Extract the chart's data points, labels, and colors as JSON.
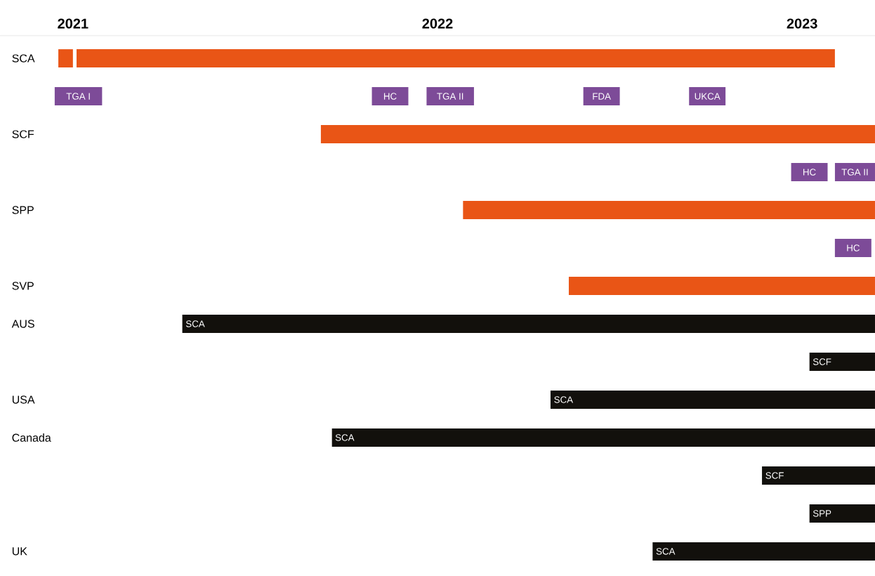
{
  "chart_data": {
    "type": "bar",
    "orientation": "horizontal",
    "categories": [
      "SCA",
      null,
      "SCF",
      null,
      "SPP",
      null,
      "SVP",
      "AUS",
      null,
      "USA",
      "Canada",
      null,
      null,
      "UK"
    ],
    "xlim": [
      2020.8,
      2023.2
    ],
    "xticks": [
      2021,
      2022,
      2023
    ],
    "series": [
      {
        "color": "#e95516",
        "base": [
          2020.96,
          null,
          2021.68,
          null,
          2022.07,
          null,
          2022.36,
          null,
          null,
          null,
          null,
          null,
          null,
          null
        ],
        "values": [
          0.04,
          null,
          1.52,
          null,
          1.13,
          null,
          0.84,
          null,
          null,
          null,
          null,
          null,
          null,
          null
        ]
      },
      {
        "color": "#e95516",
        "base": [
          2021.01,
          null,
          null,
          null,
          null,
          null,
          null,
          null,
          null,
          null,
          null,
          null,
          null,
          null
        ],
        "values": [
          2.08,
          null,
          null,
          null,
          null,
          null,
          null,
          null,
          null,
          null,
          null,
          null,
          null,
          null
        ]
      },
      {
        "color": "#7d4b98",
        "base": [
          null,
          2020.95,
          null,
          2022.97,
          null,
          2023.09,
          null,
          null,
          null,
          null,
          null,
          null,
          null,
          null
        ],
        "values": [
          null,
          0.13,
          null,
          0.1,
          null,
          0.1,
          null,
          null,
          null,
          null,
          null,
          null,
          null,
          null
        ],
        "value_labels": [
          null,
          "TGA I",
          null,
          "HC",
          null,
          "HC",
          null,
          null,
          null,
          null,
          null,
          null,
          null,
          null
        ]
      },
      {
        "color": "#7d4b98",
        "base": [
          null,
          2021.82,
          null,
          2023.09,
          null,
          null,
          null,
          null,
          null,
          null,
          null,
          null,
          null,
          null
        ],
        "values": [
          null,
          0.1,
          null,
          0.11,
          null,
          null,
          null,
          null,
          null,
          null,
          null,
          null,
          null,
          null
        ],
        "value_labels": [
          null,
          "HC",
          null,
          "TGA II",
          null,
          null,
          null,
          null,
          null,
          null,
          null,
          null,
          null,
          null
        ]
      },
      {
        "color": "#7d4b98",
        "base": [
          null,
          2021.97,
          null,
          null,
          null,
          null,
          null,
          null,
          null,
          null,
          null,
          null,
          null,
          null
        ],
        "values": [
          null,
          0.13,
          null,
          null,
          null,
          null,
          null,
          null,
          null,
          null,
          null,
          null,
          null,
          null
        ],
        "value_labels": [
          null,
          "TGA II",
          null,
          null,
          null,
          null,
          null,
          null,
          null,
          null,
          null,
          null,
          null,
          null
        ]
      },
      {
        "color": "#7d4b98",
        "base": [
          null,
          2022.4,
          null,
          null,
          null,
          null,
          null,
          null,
          null,
          null,
          null,
          null,
          null,
          null
        ],
        "values": [
          null,
          0.1,
          null,
          null,
          null,
          null,
          null,
          null,
          null,
          null,
          null,
          null,
          null,
          null
        ],
        "value_labels": [
          null,
          "FDA",
          null,
          null,
          null,
          null,
          null,
          null,
          null,
          null,
          null,
          null,
          null,
          null
        ]
      },
      {
        "color": "#7d4b98",
        "base": [
          null,
          2022.69,
          null,
          null,
          null,
          null,
          null,
          null,
          null,
          null,
          null,
          null,
          null,
          null
        ],
        "values": [
          null,
          0.1,
          null,
          null,
          null,
          null,
          null,
          null,
          null,
          null,
          null,
          null,
          null,
          null
        ],
        "value_labels": [
          null,
          "UKCA",
          null,
          null,
          null,
          null,
          null,
          null,
          null,
          null,
          null,
          null,
          null,
          null
        ]
      },
      {
        "color": "#12100c",
        "base": [
          null,
          null,
          null,
          null,
          null,
          null,
          null,
          2021.3,
          2023.02,
          2022.31,
          2021.71,
          2022.89,
          2023.02,
          2022.59
        ],
        "values": [
          null,
          null,
          null,
          null,
          null,
          null,
          null,
          1.9,
          0.18,
          0.89,
          1.49,
          0.31,
          0.18,
          0.61
        ],
        "value_labels": [
          null,
          null,
          null,
          null,
          null,
          null,
          null,
          "SCA",
          "SCF",
          "SCA",
          "SCA",
          "SCF",
          "SPP",
          "SCA"
        ]
      }
    ]
  }
}
